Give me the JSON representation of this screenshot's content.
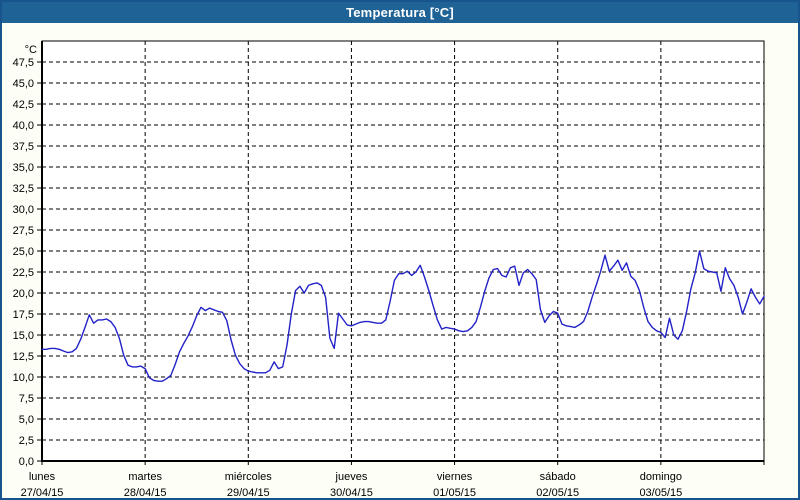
{
  "window": {
    "title": "Temperatura [°C]"
  },
  "chart_data": {
    "type": "line",
    "title": "Temperatura [°C]",
    "ylabel": "°C",
    "ylim": [
      0,
      50
    ],
    "grid": true,
    "legend_position": "none",
    "line_color": "#2222c8",
    "y_axis": {
      "unit_label": "°C",
      "tick_step": 2.5,
      "tick_values": [
        0,
        2.5,
        5,
        7.5,
        10,
        12.5,
        15,
        17.5,
        20,
        22.5,
        25,
        27.5,
        30,
        32.5,
        35,
        37.5,
        40,
        42.5,
        45,
        47.5
      ],
      "tick_labels": [
        "0,0",
        "2,5",
        "5,0",
        "7,5",
        "10,0",
        "12,5",
        "15,0",
        "17,5",
        "20,0",
        "22,5",
        "25,0",
        "27,5",
        "30,0",
        "32,5",
        "35,0",
        "37,5",
        "40,0",
        "42,5",
        "45,0",
        "47,5"
      ]
    },
    "x_axis": {
      "days": [
        {
          "name": "lunes",
          "date": "27/04/15"
        },
        {
          "name": "martes",
          "date": "28/04/15"
        },
        {
          "name": "miércoles",
          "date": "29/04/15"
        },
        {
          "name": "jueves",
          "date": "30/04/15"
        },
        {
          "name": "viernes",
          "date": "01/05/15"
        },
        {
          "name": "sábado",
          "date": "02/05/15"
        },
        {
          "name": "domingo",
          "date": "03/05/15"
        }
      ]
    },
    "series": [
      {
        "name": "Temperatura",
        "sample_interval_hours": 1,
        "start": "lunes 27/04/15 00:00",
        "values": [
          13.3,
          13.3,
          13.4,
          13.4,
          13.3,
          13.1,
          12.9,
          13.0,
          13.4,
          14.5,
          15.9,
          17.4,
          16.4,
          16.8,
          16.8,
          16.9,
          16.6,
          15.9,
          14.6,
          12.6,
          11.4,
          11.2,
          11.2,
          11.3,
          11.0,
          9.9,
          9.6,
          9.5,
          9.5,
          9.8,
          10.2,
          11.5,
          13.0,
          14.0,
          14.9,
          16.0,
          17.3,
          18.3,
          17.9,
          18.2,
          18.0,
          17.8,
          17.7,
          16.7,
          14.4,
          12.6,
          11.6,
          11.0,
          10.7,
          10.6,
          10.5,
          10.5,
          10.5,
          10.8,
          11.8,
          11.0,
          11.2,
          13.8,
          17.5,
          20.3,
          20.8,
          20.0,
          20.9,
          21.1,
          21.2,
          20.9,
          19.5,
          14.6,
          13.4,
          17.6,
          16.9,
          16.2,
          16.1,
          16.3,
          16.5,
          16.6,
          16.6,
          16.5,
          16.4,
          16.4,
          16.8,
          19.0,
          21.5,
          22.3,
          22.3,
          22.6,
          22.1,
          22.5,
          23.3,
          21.9,
          20.3,
          18.5,
          16.8,
          15.7,
          15.9,
          15.8,
          15.7,
          15.5,
          15.4,
          15.5,
          15.9,
          16.6,
          18.3,
          20.2,
          21.8,
          22.8,
          22.9,
          22.1,
          21.9,
          23.0,
          23.2,
          20.9,
          22.4,
          22.8,
          22.3,
          21.6,
          18.0,
          16.5,
          17.3,
          17.8,
          17.6,
          16.3,
          16.1,
          16.0,
          15.9,
          16.2,
          16.6,
          17.8,
          19.5,
          21.0,
          22.6,
          24.5,
          22.6,
          23.2,
          23.9,
          22.7,
          23.6,
          22.0,
          21.5,
          20.3,
          18.3,
          16.6,
          15.9,
          15.5,
          15.3,
          14.7,
          17.0,
          15.0,
          14.5,
          15.5,
          17.8,
          20.5,
          22.4,
          25.0,
          22.9,
          22.6,
          22.5,
          22.4,
          20.2,
          23.0,
          21.7,
          20.9,
          19.5,
          17.5,
          18.9,
          20.5,
          19.5,
          18.7,
          19.6
        ]
      }
    ]
  }
}
